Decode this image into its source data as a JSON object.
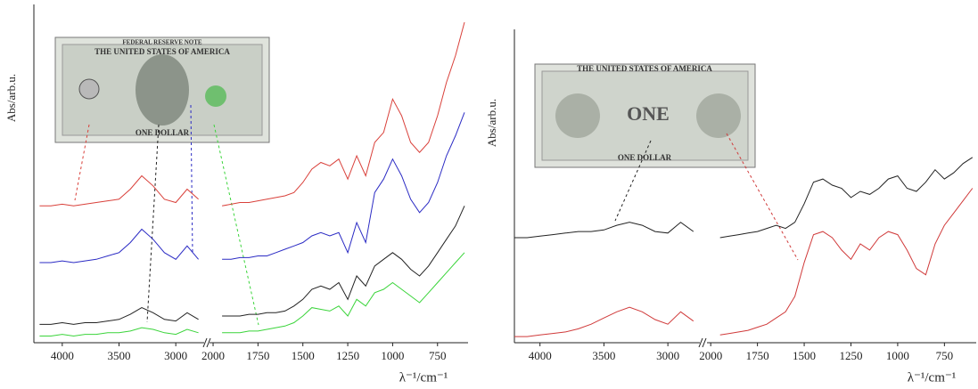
{
  "chart_data": [
    {
      "type": "line",
      "y_label": "Abs/arb.u.",
      "x_label": "λ⁻¹/cm⁻¹",
      "x": [
        4200,
        4100,
        4000,
        3900,
        3800,
        3700,
        3600,
        3500,
        3400,
        3300,
        3200,
        3100,
        3000,
        2900,
        2800,
        2000,
        1950,
        1900,
        1850,
        1800,
        1750,
        1700,
        1650,
        1600,
        1550,
        1500,
        1450,
        1400,
        1350,
        1300,
        1250,
        1200,
        1150,
        1100,
        1050,
        1000,
        950,
        900,
        850,
        800,
        750,
        700,
        650,
        600
      ],
      "x_segments": [
        [
          4250,
          2750
        ],
        [
          2020,
          580
        ]
      ],
      "ylim": [
        0,
        10
      ],
      "xticks": [
        4000,
        3500,
        3000,
        2000,
        1750,
        1500,
        1250,
        1000,
        750
      ],
      "series": [
        {
          "color": "#d9403a",
          "values": [
            4.1,
            4.1,
            4.15,
            4.1,
            4.15,
            4.2,
            4.25,
            4.3,
            4.6,
            5.0,
            4.7,
            4.3,
            4.2,
            4.6,
            4.3,
            null,
            4.1,
            4.15,
            4.2,
            4.2,
            4.25,
            4.3,
            4.35,
            4.4,
            4.5,
            4.8,
            5.2,
            5.4,
            5.3,
            5.5,
            4.9,
            5.6,
            5.0,
            6.0,
            6.3,
            7.3,
            6.8,
            6.0,
            5.7,
            6.0,
            6.8,
            7.8,
            8.6,
            9.6
          ]
        },
        {
          "color": "#2b2bc4",
          "values": [
            2.4,
            2.4,
            2.45,
            2.4,
            2.45,
            2.5,
            2.6,
            2.7,
            3.0,
            3.4,
            3.1,
            2.7,
            2.5,
            2.9,
            2.5,
            null,
            2.5,
            2.5,
            2.55,
            2.55,
            2.6,
            2.6,
            2.7,
            2.8,
            2.9,
            3.0,
            3.2,
            3.3,
            3.2,
            3.3,
            2.7,
            3.6,
            3.0,
            4.5,
            4.9,
            5.5,
            5.0,
            4.3,
            3.9,
            4.2,
            4.8,
            5.6,
            6.2,
            6.9
          ]
        },
        {
          "color": "#222222",
          "values": [
            0.55,
            0.55,
            0.6,
            0.55,
            0.6,
            0.6,
            0.65,
            0.7,
            0.85,
            1.05,
            0.9,
            0.7,
            0.65,
            0.9,
            0.7,
            null,
            0.8,
            0.8,
            0.8,
            0.85,
            0.85,
            0.9,
            0.9,
            0.95,
            1.1,
            1.3,
            1.6,
            1.7,
            1.6,
            1.8,
            1.3,
            2.0,
            1.7,
            2.3,
            2.5,
            2.7,
            2.5,
            2.2,
            2.0,
            2.3,
            2.7,
            3.1,
            3.5,
            4.1
          ]
        },
        {
          "color": "#3ad43a",
          "values": [
            0.2,
            0.2,
            0.25,
            0.2,
            0.25,
            0.25,
            0.3,
            0.3,
            0.35,
            0.45,
            0.4,
            0.3,
            0.25,
            0.4,
            0.3,
            null,
            0.3,
            0.3,
            0.3,
            0.35,
            0.35,
            0.4,
            0.45,
            0.5,
            0.6,
            0.8,
            1.05,
            1.0,
            0.95,
            1.1,
            0.8,
            1.3,
            1.1,
            1.5,
            1.6,
            1.8,
            1.6,
            1.4,
            1.2,
            1.5,
            1.8,
            2.1,
            2.4,
            2.7
          ]
        }
      ],
      "annotations": [
        "FEDERAL RESERVE NOTE",
        "THE UNITED STATES OF AMERICA",
        "ONE DOLLAR"
      ]
    },
    {
      "type": "line",
      "y_label": "Abs/arb.u.",
      "x_label": "λ⁻¹/cm⁻¹",
      "x": [
        4200,
        4100,
        4000,
        3900,
        3800,
        3700,
        3600,
        3500,
        3400,
        3300,
        3200,
        3100,
        3000,
        2900,
        2800,
        2000,
        1950,
        1900,
        1850,
        1800,
        1750,
        1700,
        1650,
        1600,
        1550,
        1500,
        1450,
        1400,
        1350,
        1300,
        1250,
        1200,
        1150,
        1100,
        1050,
        1000,
        950,
        900,
        850,
        800,
        750,
        700,
        650,
        600
      ],
      "x_segments": [
        [
          4200,
          2750
        ],
        [
          2020,
          580
        ]
      ],
      "ylim": [
        0,
        10
      ],
      "xticks": [
        4000,
        3500,
        3000,
        2000,
        1750,
        1500,
        1250,
        1000,
        750
      ],
      "series": [
        {
          "color": "#222222",
          "values": [
            3.4,
            3.4,
            3.45,
            3.5,
            3.55,
            3.6,
            3.6,
            3.65,
            3.8,
            3.9,
            3.8,
            3.6,
            3.55,
            3.9,
            3.6,
            null,
            3.4,
            3.45,
            3.5,
            3.55,
            3.6,
            3.7,
            3.8,
            3.7,
            3.9,
            4.5,
            5.2,
            5.3,
            5.1,
            5.0,
            4.7,
            4.9,
            4.8,
            5.0,
            5.3,
            5.4,
            5.0,
            4.9,
            5.2,
            5.6,
            5.3,
            5.5,
            5.8,
            6.0
          ]
        },
        {
          "color": "#d03a3a",
          "values": [
            0.2,
            0.2,
            0.25,
            0.3,
            0.35,
            0.45,
            0.6,
            0.8,
            1.0,
            1.15,
            1.0,
            0.75,
            0.6,
            1.0,
            0.7,
            null,
            0.25,
            0.3,
            0.35,
            0.4,
            0.5,
            0.6,
            0.8,
            1.0,
            1.5,
            2.6,
            3.5,
            3.6,
            3.4,
            3.0,
            2.7,
            3.2,
            3.0,
            3.4,
            3.6,
            3.5,
            3.0,
            2.4,
            2.2,
            3.2,
            3.8,
            4.2,
            4.6,
            5.0
          ]
        }
      ],
      "annotations": [
        "THE UNITED STATES OF AMERICA",
        "ONE",
        "ONE DOLLAR"
      ]
    }
  ]
}
